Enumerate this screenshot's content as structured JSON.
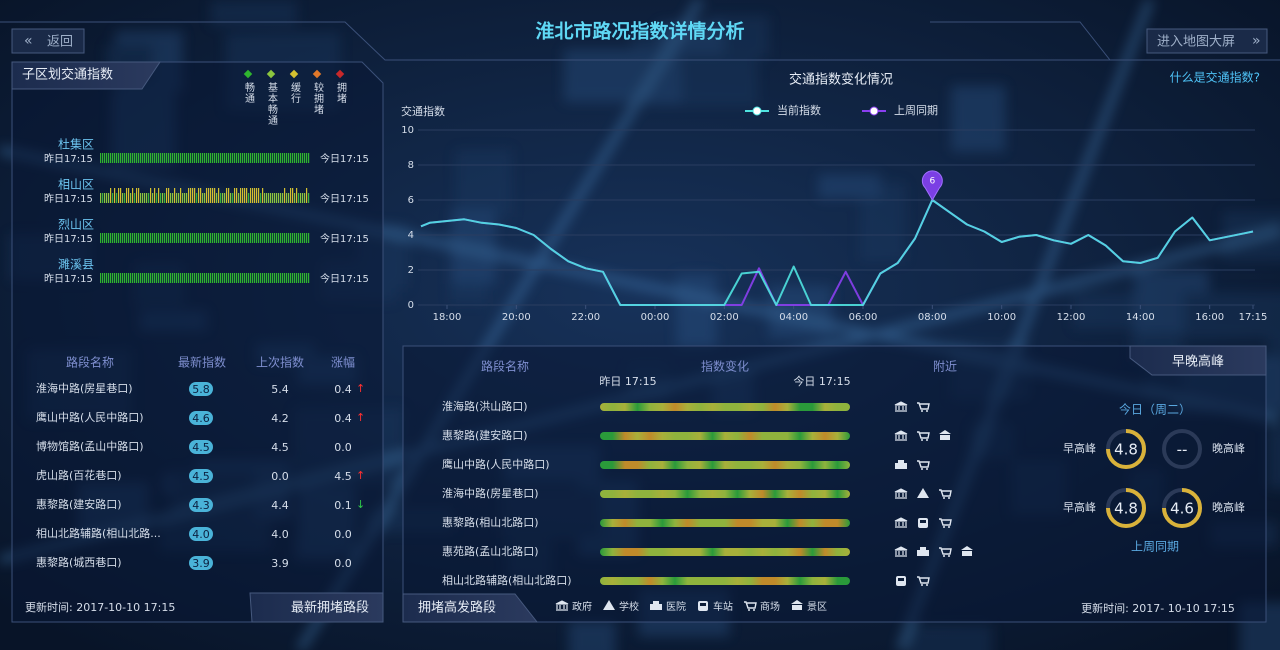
{
  "header": {
    "title": "淮北市路况指数详情分析",
    "back": "返回",
    "map_button": "进入地图大屏"
  },
  "district_panel": {
    "title": "子区划交通指数",
    "legend": [
      {
        "label": "畅通",
        "color": "#2fb52f"
      },
      {
        "label": "基本畅通",
        "color": "#8cc63f"
      },
      {
        "label": "缓行",
        "color": "#d4c030"
      },
      {
        "label": "较拥堵",
        "color": "#e0782a"
      },
      {
        "label": "拥堵",
        "color": "#c8282a"
      }
    ],
    "districts": [
      {
        "name": "杜集区",
        "start": "昨日17:15",
        "end": "今日17:15"
      },
      {
        "name": "相山区",
        "start": "昨日17:15",
        "end": "今日17:15"
      },
      {
        "name": "烈山区",
        "start": "昨日17:15",
        "end": "今日17:15"
      },
      {
        "name": "濉溪县",
        "start": "昨日17:15",
        "end": "今日17:15"
      }
    ]
  },
  "ranking": {
    "columns": [
      "路段名称",
      "最新指数",
      "上次指数",
      "涨幅"
    ],
    "rows": [
      {
        "name": "淮海中路(房星巷口)",
        "latest": "5.8",
        "previous": "5.4",
        "change": "0.4",
        "trend": "↑"
      },
      {
        "name": "鹰山中路(人民中路口)",
        "latest": "4.6",
        "previous": "4.2",
        "change": "0.4",
        "trend": "↑"
      },
      {
        "name": "博物馆路(孟山中路口)",
        "latest": "4.5",
        "previous": "4.5",
        "change": "0.0"
      },
      {
        "name": "虎山路(百花巷口)",
        "latest": "4.5",
        "previous": "0.0",
        "change": "4.5",
        "trend": "↑"
      },
      {
        "name": "惠黎路(建安路口)",
        "latest": "4.3",
        "previous": "4.4",
        "change": "0.1",
        "trend": "↓"
      },
      {
        "name": "相山北路辅路(相山北路...",
        "latest": "4.0",
        "previous": "4.0",
        "change": "0.0"
      },
      {
        "name": "惠黎路(城西巷口)",
        "latest": "3.9",
        "previous": "3.9",
        "change": "0.0"
      }
    ],
    "updated": "更新时间: 2017-10-10 17:15",
    "tab": "最新拥堵路段"
  },
  "chart_data": {
    "type": "line",
    "title": "交通指数变化情况",
    "y_label": "交通指数",
    "help_link": "什么是交通指数?",
    "x": [
      17.25,
      17.5,
      18,
      18.5,
      19,
      19.5,
      20,
      20.5,
      21,
      21.5,
      22,
      22.5,
      23,
      23.5,
      24,
      24.5,
      25,
      25.5,
      26,
      26.5,
      27,
      27.5,
      28,
      28.5,
      29,
      29.5,
      30,
      30.5,
      31,
      31.5,
      32,
      32.5,
      33,
      33.5,
      34,
      34.5,
      35,
      35.5,
      36,
      36.5,
      37,
      37.5,
      38,
      38.5,
      39,
      39.5,
      40,
      40.5,
      41,
      41.25
    ],
    "series": [
      {
        "name": "当前指数",
        "color": "#4fe3e0",
        "values": [
          4.5,
          4.7,
          4.8,
          4.9,
          4.7,
          4.6,
          4.4,
          4.0,
          3.2,
          2.5,
          2.1,
          1.9,
          0,
          0,
          0,
          0,
          0,
          0,
          0,
          1.8,
          1.9,
          0,
          2.2,
          0,
          0,
          0,
          0,
          1.8,
          2.4,
          3.8,
          6,
          5.3,
          4.6,
          4.2,
          3.6,
          3.9,
          4.0,
          3.7,
          3.5,
          4.0,
          3.4,
          2.5,
          2.4,
          2.7,
          4.2,
          5.0,
          3.7,
          3.9,
          4.1,
          4.2
        ]
      },
      {
        "name": "上周同期",
        "color": "#8a3ff0",
        "values": [
          4.5,
          4.7,
          4.8,
          4.9,
          4.7,
          4.6,
          4.4,
          4.0,
          3.2,
          2.5,
          2.1,
          1.9,
          0,
          0,
          0,
          0,
          0,
          0,
          0,
          0,
          2.1,
          0,
          0,
          0,
          0,
          1.9,
          0,
          1.8,
          2.4,
          3.8,
          6,
          5.3,
          4.6,
          4.2,
          3.6,
          3.9,
          4.0,
          3.7,
          3.5,
          4.0,
          3.4,
          2.5,
          2.4,
          2.7,
          4.2,
          5.0,
          3.7,
          3.9,
          4.1,
          4.2
        ]
      }
    ],
    "xlim": [
      17.25,
      41.25
    ],
    "xticks": [
      {
        "value": 18,
        "label": "18:00"
      },
      {
        "value": 20,
        "label": "20:00"
      },
      {
        "value": 22,
        "label": "22:00"
      },
      {
        "value": 24,
        "label": "00:00"
      },
      {
        "value": 26,
        "label": "02:00"
      },
      {
        "value": 28,
        "label": "04:00"
      },
      {
        "value": 30,
        "label": "06:00"
      },
      {
        "value": 32,
        "label": "08:00"
      },
      {
        "value": 34,
        "label": "10:00"
      },
      {
        "value": 36,
        "label": "12:00"
      },
      {
        "value": 38,
        "label": "14:00"
      },
      {
        "value": 40,
        "label": "16:00"
      },
      {
        "value": 41.25,
        "label": "17:15"
      }
    ],
    "ylim": [
      0,
      10
    ],
    "yticks": [
      0,
      2,
      4,
      6,
      8,
      10
    ],
    "grid": true,
    "peak_marker": true
  },
  "roads": {
    "columns": [
      "路段名称",
      "指数变化",
      "附近"
    ],
    "start": "昨日 17:15",
    "end": "今日 17:15",
    "rows": [
      "淮海路(洪山路口)",
      "惠黎路(建安路口)",
      "鹰山中路(人民中路口)",
      "淮海中路(房星巷口)",
      "惠黎路(相山北路口)",
      "惠苑路(孟山北路口)",
      "相山北路辅路(相山北路口)"
    ],
    "poi_legend": [
      "政府",
      "学校",
      "医院",
      "车站",
      "商场",
      "景区"
    ],
    "tab": "拥堵高发路段"
  },
  "peaks": {
    "title": "早晚高峰",
    "today": "今日（周二）",
    "morning": "早高峰",
    "evening": "晚高峰",
    "today_values": [
      "4.8",
      "--"
    ],
    "last_week_values": [
      "4.8",
      "4.6"
    ],
    "last_week": "上周同期",
    "updated": "更新时间: 2017- 10-10 17:15"
  }
}
